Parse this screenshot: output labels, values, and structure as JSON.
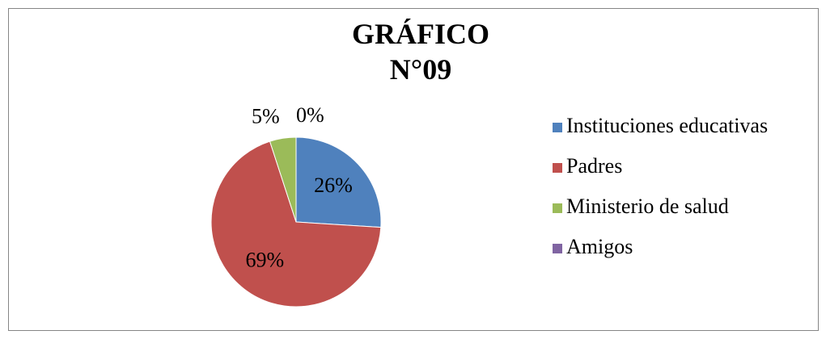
{
  "chart_data": {
    "type": "pie",
    "title": "GRÁFICO N°09",
    "categories": [
      "Instituciones educativas",
      "Padres",
      "Ministerio de salud",
      "Amigos"
    ],
    "values": [
      26,
      69,
      5,
      0
    ],
    "value_labels": [
      "26%",
      "69%",
      "5%",
      "0%"
    ],
    "colors": [
      "#4f81bd",
      "#c0504d",
      "#9bbb59",
      "#8064a2"
    ],
    "legend": "right"
  }
}
